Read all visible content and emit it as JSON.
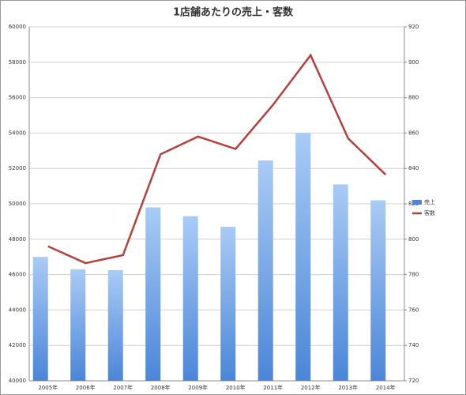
{
  "chart_data": {
    "type": "bar-line",
    "title": "1店舗あたりの売上・客数",
    "categories": [
      "2005年",
      "2006年",
      "2007年",
      "2008年",
      "2009年",
      "2010年",
      "2011年",
      "2012年",
      "2013年",
      "2014年"
    ],
    "series": [
      {
        "name": "売上",
        "type": "bar",
        "color": "#4a86d8",
        "values": [
          47000,
          46300,
          46250,
          49800,
          49300,
          48700,
          52450,
          54000,
          51100,
          50200
        ]
      },
      {
        "name": "客数",
        "type": "line",
        "axis": "y2",
        "color": "#b5403c",
        "values": [
          796,
          786.5,
          791,
          848,
          858,
          851,
          876,
          904,
          857,
          836.5
        ]
      }
    ],
    "ylim": [
      40000,
      60000
    ],
    "yticks": [
      40000,
      42000,
      44000,
      46000,
      48000,
      50000,
      52000,
      54000,
      56000,
      58000,
      60000
    ],
    "y2lim": [
      720,
      920
    ],
    "y2ticks": [
      720,
      740,
      760,
      780,
      800,
      820,
      840,
      860,
      880,
      900,
      920
    ],
    "grid": true,
    "legend": "right"
  }
}
